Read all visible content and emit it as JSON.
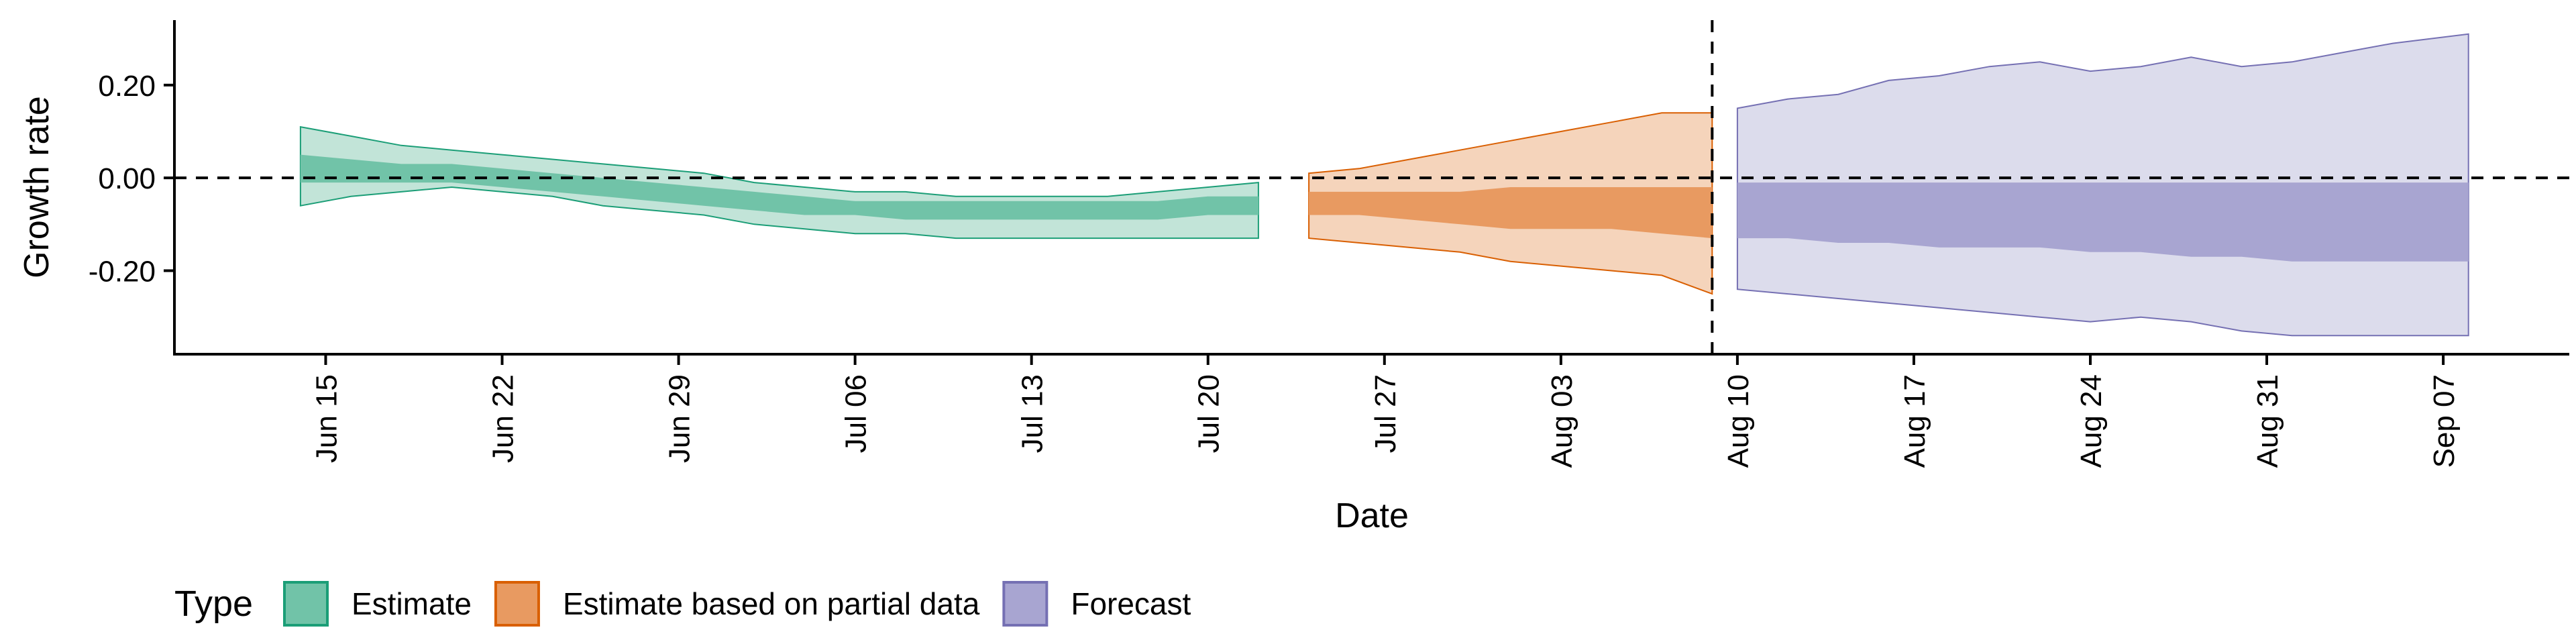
{
  "chart_data": {
    "type": "area",
    "xlabel": "Date",
    "ylabel": "Growth rate",
    "xlim": [
      "2021-06-09",
      "2021-09-12"
    ],
    "ylim": [
      -0.38,
      0.34
    ],
    "x_ticks": [
      {
        "date": "2021-06-15",
        "label": "Jun 15"
      },
      {
        "date": "2021-06-22",
        "label": "Jun 22"
      },
      {
        "date": "2021-06-29",
        "label": "Jun 29"
      },
      {
        "date": "2021-07-06",
        "label": "Jul 06"
      },
      {
        "date": "2021-07-13",
        "label": "Jul 13"
      },
      {
        "date": "2021-07-20",
        "label": "Jul 20"
      },
      {
        "date": "2021-07-27",
        "label": "Jul 27"
      },
      {
        "date": "2021-08-03",
        "label": "Aug 03"
      },
      {
        "date": "2021-08-10",
        "label": "Aug 10"
      },
      {
        "date": "2021-08-17",
        "label": "Aug 17"
      },
      {
        "date": "2021-08-24",
        "label": "Aug 24"
      },
      {
        "date": "2021-08-31",
        "label": "Aug 31"
      },
      {
        "date": "2021-09-07",
        "label": "Sep 07"
      }
    ],
    "y_ticks": [
      {
        "value": 0.2,
        "label": "0.20"
      },
      {
        "value": 0.0,
        "label": "0.00"
      },
      {
        "value": -0.2,
        "label": "-0.20"
      }
    ],
    "reference_hline": 0.0,
    "reference_vline": "2021-08-09",
    "legend": {
      "title": "Type",
      "position": "bottom"
    },
    "series": [
      {
        "name": "Estimate",
        "color": "#1b9e77",
        "outer_fill": "#c2e4d8",
        "inner_fill": "#71c3a8",
        "x": [
          "2021-06-14",
          "2021-06-16",
          "2021-06-18",
          "2021-06-20",
          "2021-06-22",
          "2021-06-24",
          "2021-06-26",
          "2021-06-28",
          "2021-06-30",
          "2021-07-02",
          "2021-07-04",
          "2021-07-06",
          "2021-07-08",
          "2021-07-10",
          "2021-07-12",
          "2021-07-14",
          "2021-07-16",
          "2021-07-18",
          "2021-07-20",
          "2021-07-22"
        ],
        "upper90": [
          0.11,
          0.09,
          0.07,
          0.06,
          0.05,
          0.04,
          0.03,
          0.02,
          0.01,
          -0.01,
          -0.02,
          -0.03,
          -0.03,
          -0.04,
          -0.04,
          -0.04,
          -0.04,
          -0.03,
          -0.02,
          -0.01
        ],
        "upper50": [
          0.05,
          0.04,
          0.03,
          0.03,
          0.02,
          0.01,
          0.0,
          -0.01,
          -0.02,
          -0.03,
          -0.04,
          -0.05,
          -0.05,
          -0.05,
          -0.05,
          -0.05,
          -0.05,
          -0.05,
          -0.04,
          -0.04
        ],
        "lower50": [
          -0.01,
          -0.01,
          -0.01,
          -0.01,
          -0.02,
          -0.03,
          -0.04,
          -0.05,
          -0.06,
          -0.07,
          -0.08,
          -0.08,
          -0.09,
          -0.09,
          -0.09,
          -0.09,
          -0.09,
          -0.09,
          -0.08,
          -0.08
        ],
        "lower90": [
          -0.06,
          -0.04,
          -0.03,
          -0.02,
          -0.03,
          -0.04,
          -0.06,
          -0.07,
          -0.08,
          -0.1,
          -0.11,
          -0.12,
          -0.12,
          -0.13,
          -0.13,
          -0.13,
          -0.13,
          -0.13,
          -0.13,
          -0.13
        ]
      },
      {
        "name": "Estimate based on partial data",
        "color": "#d95f02",
        "outer_fill": "#f5d4bb",
        "inner_fill": "#e89a61",
        "x": [
          "2021-07-24",
          "2021-07-26",
          "2021-07-28",
          "2021-07-30",
          "2021-08-01",
          "2021-08-03",
          "2021-08-05",
          "2021-08-07",
          "2021-08-09"
        ],
        "upper90": [
          0.01,
          0.02,
          0.04,
          0.06,
          0.08,
          0.1,
          0.12,
          0.14,
          0.14
        ],
        "upper50": [
          -0.03,
          -0.03,
          -0.03,
          -0.03,
          -0.02,
          -0.02,
          -0.02,
          -0.02,
          -0.02
        ],
        "lower50": [
          -0.08,
          -0.08,
          -0.09,
          -0.1,
          -0.11,
          -0.11,
          -0.11,
          -0.12,
          -0.13
        ],
        "lower90": [
          -0.13,
          -0.14,
          -0.15,
          -0.16,
          -0.18,
          -0.19,
          -0.2,
          -0.21,
          -0.25
        ]
      },
      {
        "name": "Forecast",
        "color": "#7570b3",
        "outer_fill": "#dcdcec",
        "inner_fill": "#a8a5d1",
        "x": [
          "2021-08-10",
          "2021-08-12",
          "2021-08-14",
          "2021-08-16",
          "2021-08-18",
          "2021-08-20",
          "2021-08-22",
          "2021-08-24",
          "2021-08-26",
          "2021-08-28",
          "2021-08-30",
          "2021-09-01",
          "2021-09-03",
          "2021-09-05",
          "2021-09-08"
        ],
        "upper90": [
          0.15,
          0.17,
          0.18,
          0.21,
          0.22,
          0.24,
          0.25,
          0.23,
          0.24,
          0.26,
          0.24,
          0.25,
          0.27,
          0.29,
          0.31
        ],
        "upper50": [
          -0.01,
          -0.01,
          -0.01,
          -0.01,
          -0.01,
          -0.01,
          -0.01,
          -0.01,
          -0.01,
          -0.01,
          -0.01,
          -0.01,
          -0.01,
          -0.01,
          -0.01
        ],
        "lower50": [
          -0.13,
          -0.13,
          -0.14,
          -0.14,
          -0.15,
          -0.15,
          -0.15,
          -0.16,
          -0.16,
          -0.17,
          -0.17,
          -0.18,
          -0.18,
          -0.18,
          -0.18
        ],
        "lower90": [
          -0.24,
          -0.25,
          -0.26,
          -0.27,
          -0.28,
          -0.29,
          -0.3,
          -0.31,
          -0.3,
          -0.31,
          -0.33,
          -0.34,
          -0.34,
          -0.34,
          -0.34
        ]
      }
    ]
  }
}
